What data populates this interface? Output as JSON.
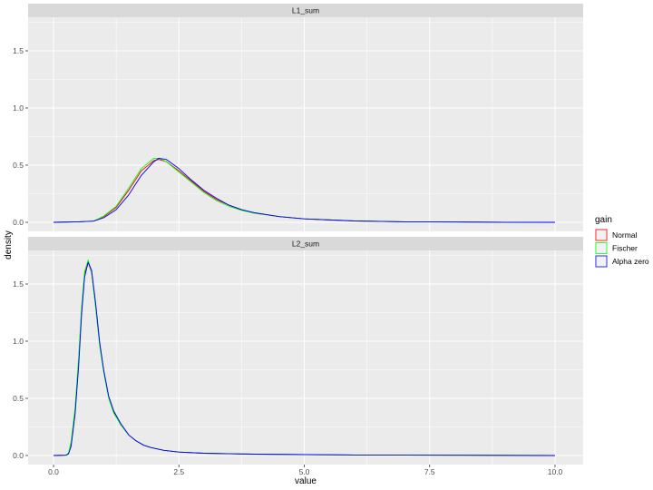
{
  "chart_data": {
    "type": "line",
    "xlabel": "value",
    "ylabel": "density",
    "xlim": [
      -0.5,
      10.5
    ],
    "ylim": [
      -0.09,
      1.79
    ],
    "x_ticks": [
      "0.0",
      "2.5",
      "5.0",
      "7.5",
      "10.0"
    ],
    "y_ticks": [
      "0.0",
      "0.5",
      "1.0",
      "1.5"
    ],
    "grid": true,
    "legend": {
      "title": "gain",
      "position": "right",
      "entries": [
        {
          "name": "Normal",
          "color": "#ff0000"
        },
        {
          "name": "Fischer",
          "color": "#00ff00"
        },
        {
          "name": "Alpha zero",
          "color": "#0000ff"
        }
      ]
    },
    "facets": [
      {
        "label": "L1_sum",
        "x": [
          0,
          0.5,
          0.8,
          1.0,
          1.25,
          1.5,
          1.75,
          2.0,
          2.1,
          2.25,
          2.5,
          2.75,
          3.0,
          3.25,
          3.5,
          3.75,
          4.0,
          4.5,
          5,
          6,
          7,
          8,
          9,
          10
        ],
        "series": [
          {
            "name": "Normal",
            "values": [
              0,
              0.005,
              0.01,
              0.05,
              0.13,
              0.28,
              0.45,
              0.54,
              0.55,
              0.53,
              0.45,
              0.36,
              0.27,
              0.2,
              0.15,
              0.11,
              0.08,
              0.05,
              0.03,
              0.012,
              0.005,
              0.003,
              0.001,
              0
            ]
          },
          {
            "name": "Fischer",
            "values": [
              0,
              0.005,
              0.01,
              0.055,
              0.14,
              0.3,
              0.47,
              0.56,
              0.56,
              0.53,
              0.44,
              0.35,
              0.26,
              0.19,
              0.14,
              0.105,
              0.08,
              0.05,
              0.03,
              0.012,
              0.005,
              0.002,
              0.001,
              0
            ]
          },
          {
            "name": "Alpha zero",
            "values": [
              0,
              0.005,
              0.01,
              0.04,
              0.11,
              0.24,
              0.41,
              0.53,
              0.56,
              0.55,
              0.47,
              0.37,
              0.28,
              0.21,
              0.15,
              0.11,
              0.085,
              0.05,
              0.03,
              0.012,
              0.005,
              0.002,
              0.001,
              0
            ]
          }
        ]
      },
      {
        "label": "L2_sum",
        "x": [
          0,
          0.25,
          0.3,
          0.35,
          0.43,
          0.5,
          0.56,
          0.62,
          0.69,
          0.76,
          0.84,
          0.92,
          1.0,
          1.1,
          1.2,
          1.34,
          1.5,
          1.64,
          1.8,
          1.94,
          2.2,
          2.5,
          3,
          4,
          5,
          6,
          8,
          10
        ],
        "series": [
          {
            "name": "Normal",
            "values": [
              0,
              0.003,
              0.02,
              0.1,
              0.4,
              0.82,
              1.28,
              1.59,
              1.69,
              1.6,
              1.3,
              0.97,
              0.74,
              0.51,
              0.38,
              0.27,
              0.18,
              0.13,
              0.09,
              0.07,
              0.045,
              0.03,
              0.02,
              0.012,
              0.008,
              0.005,
              0.002,
              0
            ]
          },
          {
            "name": "Fischer",
            "values": [
              0,
              0.003,
              0.025,
              0.12,
              0.42,
              0.86,
              1.3,
              1.61,
              1.71,
              1.6,
              1.29,
              0.96,
              0.73,
              0.5,
              0.37,
              0.27,
              0.18,
              0.13,
              0.09,
              0.07,
              0.045,
              0.03,
              0.02,
              0.012,
              0.008,
              0.005,
              0.002,
              0
            ]
          },
          {
            "name": "Alpha zero",
            "values": [
              0,
              0.002,
              0.015,
              0.08,
              0.36,
              0.78,
              1.24,
              1.56,
              1.69,
              1.62,
              1.33,
              0.99,
              0.75,
              0.52,
              0.39,
              0.28,
              0.18,
              0.13,
              0.09,
              0.07,
              0.045,
              0.03,
              0.02,
              0.012,
              0.008,
              0.005,
              0.002,
              0
            ]
          }
        ]
      }
    ]
  }
}
